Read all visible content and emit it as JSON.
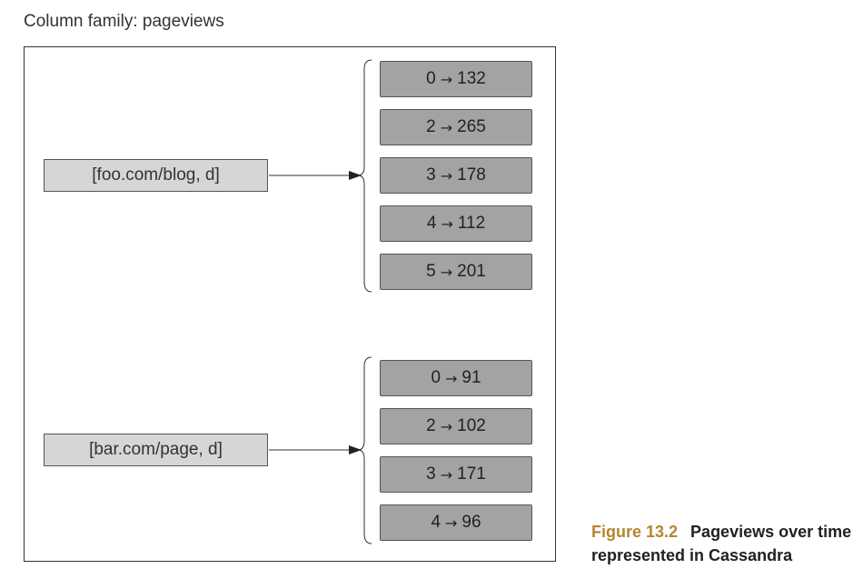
{
  "title": "Column family: pageviews",
  "groups": [
    {
      "row_key": "[foo.com/blog, d]",
      "cells": [
        {
          "key": "0",
          "value": "132"
        },
        {
          "key": "2",
          "value": "265"
        },
        {
          "key": "3",
          "value": "178"
        },
        {
          "key": "4",
          "value": "112"
        },
        {
          "key": "5",
          "value": "201"
        }
      ]
    },
    {
      "row_key": "[bar.com/page, d]",
      "cells": [
        {
          "key": "0",
          "value": "91"
        },
        {
          "key": "2",
          "value": "102"
        },
        {
          "key": "3",
          "value": "171"
        },
        {
          "key": "4",
          "value": "96"
        }
      ]
    }
  ],
  "arrow_symbol": "→",
  "caption": {
    "figure_label": "Figure 13.2",
    "text": "Pageviews over time represented in Cassandra"
  },
  "colors": {
    "row_key_fill": "#d6d6d6",
    "cell_fill": "#a3a3a3",
    "caption_label": "#b5862e"
  }
}
